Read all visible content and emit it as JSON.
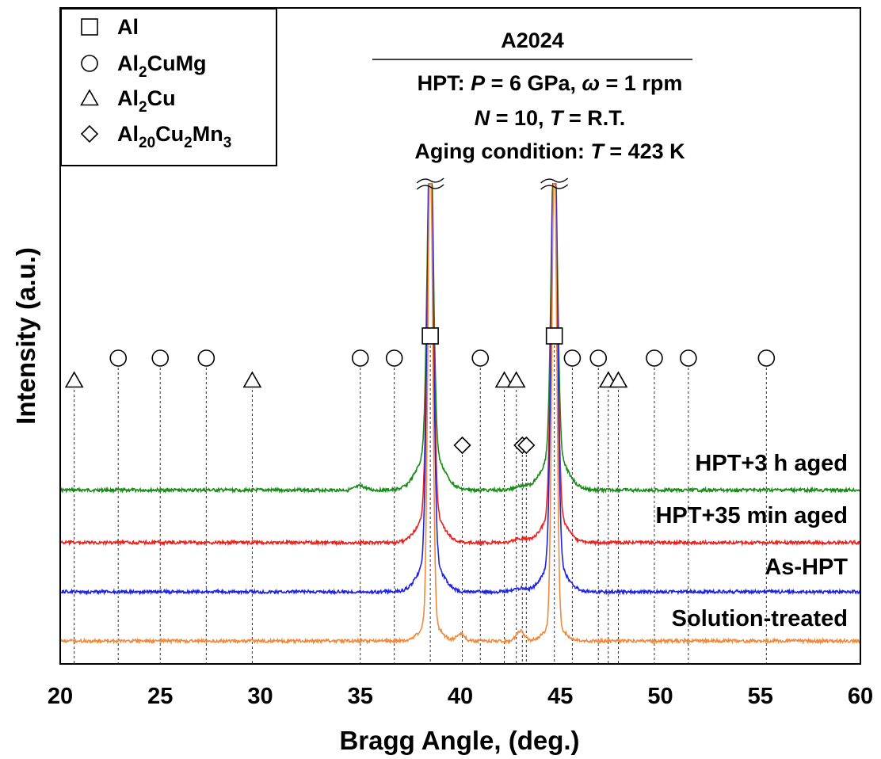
{
  "chart_data": {
    "type": "line",
    "title": "A2024",
    "conditions": [
      [
        {
          "t": "HPT: "
        },
        {
          "t": "P",
          "i": true
        },
        {
          "t": " = 6 GPa, "
        },
        {
          "t": "ω",
          "i": true
        },
        {
          "t": " = 1 rpm"
        }
      ],
      [
        {
          "t": "N",
          "i": true
        },
        {
          "t": " = 10, "
        },
        {
          "t": "T",
          "i": true
        },
        {
          "t": " = R.T."
        }
      ],
      [
        {
          "t": "Aging condition: "
        },
        {
          "t": "T",
          "i": true
        },
        {
          "t": " = 423 K"
        }
      ]
    ],
    "xlabel": "Bragg Angle, (deg.)",
    "ylabel": "Intensity (a.u.)",
    "xlim": [
      20,
      60
    ],
    "xticks": [
      20,
      25,
      30,
      35,
      40,
      45,
      50,
      55,
      60
    ],
    "legend": {
      "position": "top-left",
      "entries": [
        {
          "marker": "square",
          "parts": [
            {
              "t": "Al"
            }
          ]
        },
        {
          "marker": "circle",
          "parts": [
            {
              "t": "Al"
            },
            {
              "t": "2",
              "sub": true
            },
            {
              "t": "CuMg"
            }
          ]
        },
        {
          "marker": "triangle",
          "parts": [
            {
              "t": "Al"
            },
            {
              "t": "2",
              "sub": true
            },
            {
              "t": "Cu"
            }
          ]
        },
        {
          "marker": "diamond",
          "parts": [
            {
              "t": "Al"
            },
            {
              "t": "20",
              "sub": true
            },
            {
              "t": "Cu"
            },
            {
              "t": "2",
              "sub": true
            },
            {
              "t": "Mn"
            },
            {
              "t": "3",
              "sub": true
            }
          ]
        }
      ]
    },
    "phase_markers": {
      "Al": [
        38.5,
        44.7
      ],
      "Al2CuMg": [
        22.9,
        25.0,
        27.3,
        35.0,
        36.7,
        41.0,
        45.6,
        46.9,
        49.7,
        51.4,
        55.3
      ],
      "Al2Cu": [
        20.7,
        29.6,
        42.2,
        42.8,
        47.4,
        47.9
      ],
      "Al20Cu2Mn3": [
        40.1,
        43.1,
        43.3
      ]
    },
    "series": [
      {
        "name": "HPT+3 h aged",
        "color": "#1a8a1a",
        "baseline_level": 0.735,
        "peaks": [
          {
            "x": 38.5,
            "h": 1,
            "w": 0.15,
            "off": true
          },
          {
            "x": 44.7,
            "h": 1,
            "w": 0.15,
            "off": true
          },
          {
            "x": 38.5,
            "h": 0.06,
            "w": 0.6
          },
          {
            "x": 44.7,
            "h": 0.055,
            "w": 0.6
          },
          {
            "x": 35.0,
            "h": 0.006,
            "w": 0.25
          },
          {
            "x": 43.0,
            "h": 0.006,
            "w": 0.3
          }
        ]
      },
      {
        "name": "HPT+35 min aged",
        "color": "#e8231f",
        "baseline_level": 0.815,
        "peaks": [
          {
            "x": 38.5,
            "h": 1,
            "w": 0.15,
            "off": true
          },
          {
            "x": 44.7,
            "h": 1,
            "w": 0.15,
            "off": true
          },
          {
            "x": 38.5,
            "h": 0.05,
            "w": 0.55
          },
          {
            "x": 44.7,
            "h": 0.045,
            "w": 0.55
          },
          {
            "x": 43.0,
            "h": 0.006,
            "w": 0.3
          }
        ]
      },
      {
        "name": "As-HPT",
        "color": "#1f22e0",
        "baseline_level": 0.89,
        "peaks": [
          {
            "x": 38.5,
            "h": 1,
            "w": 0.15,
            "off": true
          },
          {
            "x": 44.7,
            "h": 1,
            "w": 0.15,
            "off": true
          },
          {
            "x": 38.5,
            "h": 0.05,
            "w": 0.55
          },
          {
            "x": 44.7,
            "h": 0.045,
            "w": 0.55
          },
          {
            "x": 43.0,
            "h": 0.005,
            "w": 0.3
          }
        ]
      },
      {
        "name": "Solution-treated",
        "color": "#f08a3c",
        "baseline_level": 0.965,
        "peaks": [
          {
            "x": 38.5,
            "h": 1,
            "w": 0.12,
            "off": true
          },
          {
            "x": 44.7,
            "h": 1,
            "w": 0.12,
            "off": true
          },
          {
            "x": 38.5,
            "h": 0.03,
            "w": 0.45
          },
          {
            "x": 44.7,
            "h": 0.025,
            "w": 0.45
          },
          {
            "x": 40.0,
            "h": 0.012,
            "w": 0.2
          },
          {
            "x": 43.0,
            "h": 0.015,
            "w": 0.2
          }
        ]
      }
    ]
  }
}
